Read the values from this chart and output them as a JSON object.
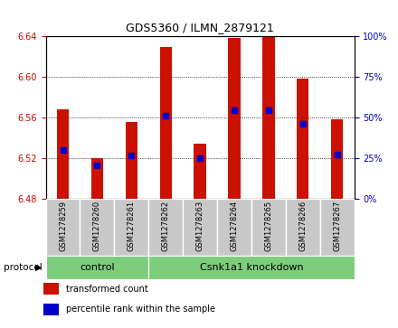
{
  "title": "GDS5360 / ILMN_2879121",
  "samples": [
    "GSM1278259",
    "GSM1278260",
    "GSM1278261",
    "GSM1278262",
    "GSM1278263",
    "GSM1278264",
    "GSM1278265",
    "GSM1278266",
    "GSM1278267"
  ],
  "bar_bottom": 6.48,
  "red_tops": [
    6.568,
    6.52,
    6.555,
    6.629,
    6.534,
    6.638,
    6.64,
    6.598,
    6.558
  ],
  "blue_values": [
    6.528,
    6.513,
    6.522,
    6.562,
    6.52,
    6.567,
    6.567,
    6.554,
    6.523
  ],
  "ylim": [
    6.48,
    6.64
  ],
  "yticks_left": [
    6.48,
    6.52,
    6.56,
    6.6,
    6.64
  ],
  "yticks_right": [
    0,
    25,
    50,
    75,
    100
  ],
  "left_tick_color": "#cc0000",
  "right_tick_color": "#0000cc",
  "bar_color": "#cc1100",
  "blue_color": "#0000cc",
  "groups": [
    {
      "label": "control",
      "start": 0,
      "end": 2
    },
    {
      "label": "Csnk1a1 knockdown",
      "start": 3,
      "end": 8
    }
  ],
  "group_color": "#7CCD7C",
  "protocol_label": "protocol",
  "legend_items": [
    {
      "label": "transformed count",
      "color": "#cc1100"
    },
    {
      "label": "percentile rank within the sample",
      "color": "#0000cc"
    }
  ],
  "tick_area_color": "#c8c8c8",
  "bar_width": 0.35,
  "blue_size": 4
}
